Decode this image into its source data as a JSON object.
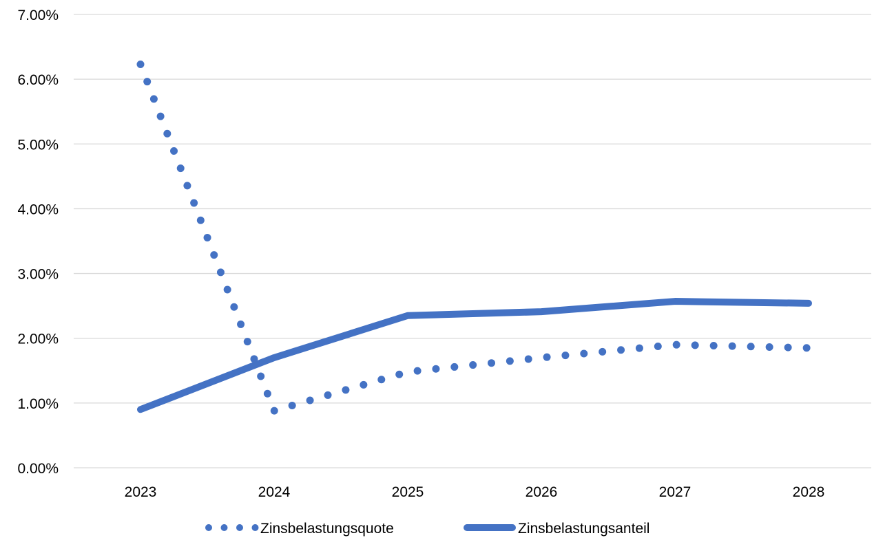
{
  "chart_data": {
    "type": "line",
    "title": "",
    "xlabel": "",
    "ylabel": "",
    "x": [
      "2023",
      "2024",
      "2025",
      "2026",
      "2027",
      "2028"
    ],
    "ylim": [
      0,
      0.07
    ],
    "y_ticks": [
      {
        "value": 0.0,
        "label": "0.00%"
      },
      {
        "value": 0.01,
        "label": "1.00%"
      },
      {
        "value": 0.02,
        "label": "2.00%"
      },
      {
        "value": 0.03,
        "label": "3.00%"
      },
      {
        "value": 0.04,
        "label": "4.00%"
      },
      {
        "value": 0.05,
        "label": "5.00%"
      },
      {
        "value": 0.06,
        "label": "6.00%"
      },
      {
        "value": 0.07,
        "label": "7.00%"
      }
    ],
    "grid": true,
    "legend_position": "bottom",
    "series": [
      {
        "name": "Zinsbelastungsquote",
        "style": "dotted",
        "color": "#4472c4",
        "values": [
          0.0623,
          0.0088,
          0.0148,
          0.017,
          0.019,
          0.0185
        ]
      },
      {
        "name": "Zinsbelastungsanteil",
        "style": "solid",
        "color": "#4472c4",
        "values": [
          0.009,
          0.017,
          0.0235,
          0.0241,
          0.0257,
          0.0254
        ]
      }
    ]
  }
}
